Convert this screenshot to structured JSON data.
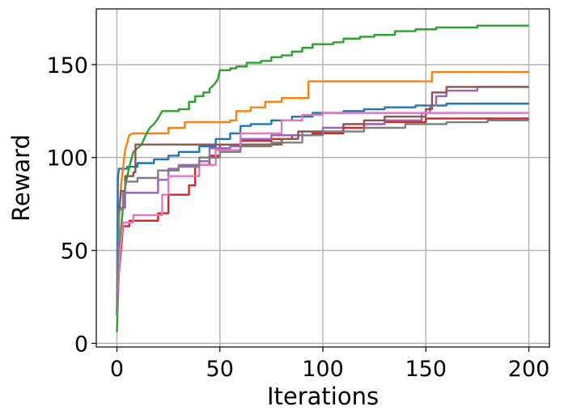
{
  "chart_data": {
    "type": "line",
    "title": "",
    "xlabel": "Iterations",
    "ylabel": "Reward",
    "xlim": [
      -10,
      210
    ],
    "ylim": [
      -2,
      180
    ],
    "xticks": [
      0,
      50,
      100,
      150,
      200
    ],
    "xtick_labels": [
      "0",
      "50",
      "100",
      "150",
      "200"
    ],
    "yticks": [
      0,
      50,
      100,
      150
    ],
    "ytick_labels": [
      "0",
      "50",
      "100",
      "150"
    ],
    "grid": true,
    "legend": "none",
    "series": [
      {
        "color": "#1f77b4",
        "points": [
          [
            0,
            15
          ],
          [
            0.5,
            89
          ],
          [
            1,
            94
          ],
          [
            5,
            94
          ],
          [
            5,
            95
          ],
          [
            10,
            95
          ],
          [
            10,
            97
          ],
          [
            18,
            97
          ],
          [
            18,
            99
          ],
          [
            25,
            99
          ],
          [
            25,
            101
          ],
          [
            30,
            101
          ],
          [
            30,
            103
          ],
          [
            40,
            103
          ],
          [
            40,
            106
          ],
          [
            48,
            106
          ],
          [
            48,
            110
          ],
          [
            55,
            110
          ],
          [
            55,
            113
          ],
          [
            60,
            113
          ],
          [
            60,
            117
          ],
          [
            65,
            117
          ],
          [
            65,
            118
          ],
          [
            75,
            118
          ],
          [
            75,
            120
          ],
          [
            85,
            120
          ],
          [
            85,
            122
          ],
          [
            95,
            122
          ],
          [
            95,
            124
          ],
          [
            110,
            124
          ],
          [
            110,
            125
          ],
          [
            120,
            125
          ],
          [
            120,
            126
          ],
          [
            130,
            126
          ],
          [
            130,
            127
          ],
          [
            145,
            127
          ],
          [
            145,
            128
          ],
          [
            160,
            128
          ],
          [
            160,
            129
          ],
          [
            200,
            129
          ]
        ]
      },
      {
        "color": "#ff7f0e",
        "points": [
          [
            0,
            15
          ],
          [
            1,
            67
          ],
          [
            2,
            85
          ],
          [
            4,
            104
          ],
          [
            6,
            112
          ],
          [
            8,
            113
          ],
          [
            25,
            113
          ],
          [
            25,
            116
          ],
          [
            33,
            116
          ],
          [
            33,
            119
          ],
          [
            55,
            119
          ],
          [
            55,
            120
          ],
          [
            58,
            120
          ],
          [
            58,
            125
          ],
          [
            65,
            125
          ],
          [
            65,
            127
          ],
          [
            72,
            127
          ],
          [
            72,
            130
          ],
          [
            80,
            130
          ],
          [
            80,
            132
          ],
          [
            93,
            132
          ],
          [
            93,
            141
          ],
          [
            153,
            141
          ],
          [
            153,
            146
          ],
          [
            200,
            146
          ]
        ]
      },
      {
        "color": "#2ca02c",
        "points": [
          [
            0,
            6
          ],
          [
            1,
            40
          ],
          [
            2,
            62
          ],
          [
            4,
            84
          ],
          [
            6,
            95
          ],
          [
            8,
            103
          ],
          [
            10,
            105
          ],
          [
            12,
            107
          ],
          [
            14,
            112
          ],
          [
            16,
            116
          ],
          [
            18,
            118
          ],
          [
            20,
            121
          ],
          [
            22,
            125
          ],
          [
            30,
            125
          ],
          [
            30,
            126
          ],
          [
            35,
            126
          ],
          [
            35,
            130
          ],
          [
            38,
            130
          ],
          [
            38,
            133
          ],
          [
            42,
            133
          ],
          [
            42,
            135
          ],
          [
            45,
            135
          ],
          [
            45,
            137
          ],
          [
            47,
            139
          ],
          [
            49,
            142
          ],
          [
            50,
            147
          ],
          [
            55,
            147
          ],
          [
            55,
            148
          ],
          [
            58,
            148
          ],
          [
            58,
            149
          ],
          [
            63,
            149
          ],
          [
            63,
            151
          ],
          [
            70,
            151
          ],
          [
            70,
            152
          ],
          [
            75,
            152
          ],
          [
            75,
            154
          ],
          [
            80,
            154
          ],
          [
            80,
            155
          ],
          [
            85,
            155
          ],
          [
            85,
            157
          ],
          [
            90,
            157
          ],
          [
            90,
            159
          ],
          [
            95,
            159
          ],
          [
            95,
            161
          ],
          [
            105,
            161
          ],
          [
            105,
            162
          ],
          [
            110,
            162
          ],
          [
            110,
            164
          ],
          [
            118,
            164
          ],
          [
            118,
            165
          ],
          [
            125,
            165
          ],
          [
            125,
            166
          ],
          [
            135,
            166
          ],
          [
            135,
            168
          ],
          [
            145,
            168
          ],
          [
            145,
            169
          ],
          [
            155,
            169
          ],
          [
            155,
            170
          ],
          [
            175,
            170
          ],
          [
            175,
            171
          ],
          [
            200,
            171
          ]
        ]
      },
      {
        "color": "#d62728",
        "points": [
          [
            0,
            15
          ],
          [
            1,
            38
          ],
          [
            2,
            50
          ],
          [
            3,
            63
          ],
          [
            6,
            63
          ],
          [
            6,
            66
          ],
          [
            20,
            66
          ],
          [
            20,
            70
          ],
          [
            25,
            70
          ],
          [
            25,
            80
          ],
          [
            35,
            80
          ],
          [
            35,
            85
          ],
          [
            38,
            85
          ],
          [
            38,
            96
          ],
          [
            45,
            96
          ],
          [
            45,
            101
          ],
          [
            50,
            101
          ],
          [
            50,
            107
          ],
          [
            60,
            107
          ],
          [
            60,
            109
          ],
          [
            75,
            109
          ],
          [
            75,
            110
          ],
          [
            85,
            110
          ],
          [
            85,
            112
          ],
          [
            95,
            112
          ],
          [
            95,
            113
          ],
          [
            110,
            113
          ],
          [
            110,
            116
          ],
          [
            120,
            116
          ],
          [
            120,
            118
          ],
          [
            130,
            118
          ],
          [
            130,
            119
          ],
          [
            150,
            119
          ],
          [
            150,
            121
          ],
          [
            200,
            121
          ]
        ]
      },
      {
        "color": "#9467bd",
        "points": [
          [
            0,
            15
          ],
          [
            1,
            71
          ],
          [
            2,
            72
          ],
          [
            3,
            72
          ],
          [
            3,
            81
          ],
          [
            20,
            81
          ],
          [
            20,
            88
          ],
          [
            25,
            88
          ],
          [
            25,
            94
          ],
          [
            30,
            94
          ],
          [
            30,
            96
          ],
          [
            40,
            96
          ],
          [
            40,
            98
          ],
          [
            45,
            98
          ],
          [
            45,
            105
          ],
          [
            55,
            105
          ],
          [
            55,
            106
          ],
          [
            60,
            106
          ],
          [
            60,
            110
          ],
          [
            75,
            110
          ],
          [
            75,
            112
          ],
          [
            90,
            112
          ],
          [
            90,
            114
          ],
          [
            100,
            114
          ],
          [
            100,
            116
          ],
          [
            110,
            116
          ],
          [
            110,
            118
          ],
          [
            130,
            118
          ],
          [
            130,
            120
          ],
          [
            148,
            120
          ],
          [
            148,
            124
          ],
          [
            152,
            124
          ],
          [
            152,
            128
          ],
          [
            155,
            128
          ],
          [
            155,
            133
          ],
          [
            160,
            133
          ],
          [
            160,
            136
          ],
          [
            175,
            136
          ],
          [
            175,
            138
          ],
          [
            200,
            138
          ]
        ]
      },
      {
        "color": "#8c564b",
        "points": [
          [
            0,
            15
          ],
          [
            1,
            70
          ],
          [
            2,
            82
          ],
          [
            4,
            82
          ],
          [
            4,
            90
          ],
          [
            8,
            90
          ],
          [
            8,
            92
          ],
          [
            9,
            92
          ],
          [
            9,
            107
          ],
          [
            80,
            107
          ],
          [
            80,
            110
          ],
          [
            88,
            110
          ],
          [
            88,
            114
          ],
          [
            110,
            114
          ],
          [
            110,
            118
          ],
          [
            120,
            118
          ],
          [
            120,
            120
          ],
          [
            130,
            120
          ],
          [
            130,
            122
          ],
          [
            150,
            122
          ],
          [
            150,
            126
          ],
          [
            153,
            126
          ],
          [
            153,
            135
          ],
          [
            160,
            135
          ],
          [
            160,
            138
          ],
          [
            200,
            138
          ]
        ]
      },
      {
        "color": "#e377c2",
        "points": [
          [
            0,
            15
          ],
          [
            1,
            40
          ],
          [
            2,
            55
          ],
          [
            3,
            65
          ],
          [
            8,
            65
          ],
          [
            8,
            69
          ],
          [
            22,
            69
          ],
          [
            22,
            80
          ],
          [
            25,
            80
          ],
          [
            25,
            90
          ],
          [
            40,
            90
          ],
          [
            40,
            96
          ],
          [
            48,
            96
          ],
          [
            48,
            104
          ],
          [
            60,
            104
          ],
          [
            60,
            113
          ],
          [
            80,
            113
          ],
          [
            80,
            120
          ],
          [
            90,
            120
          ],
          [
            90,
            123
          ],
          [
            100,
            123
          ],
          [
            100,
            124
          ],
          [
            150,
            124
          ],
          [
            150,
            124
          ],
          [
            200,
            124
          ]
        ]
      },
      {
        "color": "#7f7f7f",
        "points": [
          [
            0,
            15
          ],
          [
            1,
            70
          ],
          [
            2,
            73
          ],
          [
            4,
            73
          ],
          [
            4,
            87
          ],
          [
            10,
            87
          ],
          [
            10,
            89
          ],
          [
            20,
            89
          ],
          [
            20,
            93
          ],
          [
            30,
            93
          ],
          [
            30,
            95
          ],
          [
            40,
            95
          ],
          [
            40,
            100
          ],
          [
            50,
            100
          ],
          [
            50,
            103
          ],
          [
            60,
            103
          ],
          [
            60,
            106
          ],
          [
            75,
            106
          ],
          [
            75,
            108
          ],
          [
            90,
            108
          ],
          [
            90,
            112
          ],
          [
            100,
            112
          ],
          [
            100,
            114
          ],
          [
            120,
            114
          ],
          [
            120,
            116
          ],
          [
            140,
            116
          ],
          [
            140,
            118
          ],
          [
            160,
            118
          ],
          [
            160,
            119
          ],
          [
            180,
            119
          ],
          [
            180,
            120
          ],
          [
            200,
            120
          ]
        ]
      }
    ]
  }
}
